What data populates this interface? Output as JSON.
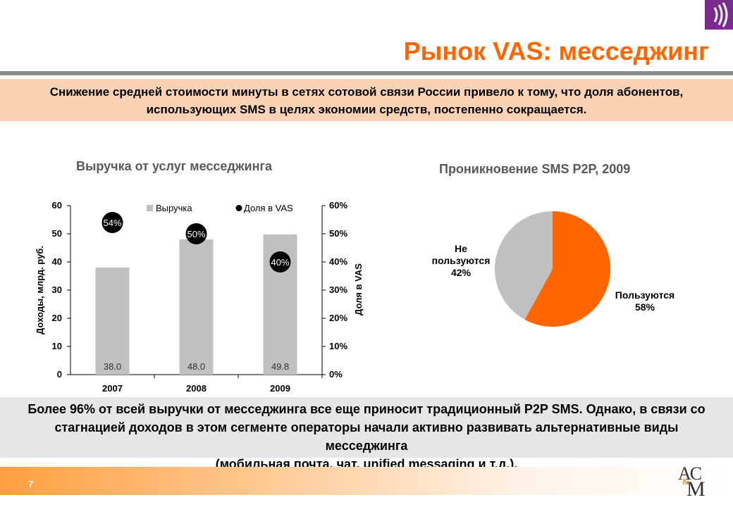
{
  "header": {
    "title": "Рынок VAS: месседжинг",
    "accent_color": "#ff6600",
    "logo_color": "#7b2a8f"
  },
  "intro": {
    "line1": "Снижение средней стоимости минуты в сетях сотовой связи России привело к тому, что доля абонентов,",
    "line2": "использующих SMS в целях экономии средств, постепенно сокращается."
  },
  "conclusion": {
    "line1": "Более 96% от всей выручки от месседжинга все еще приносит традиционный P2P SMS. Однако, в связи со",
    "line2": "стагнацией доходов в этом сегменте операторы начали активно развивать альтернативные виды месседжинга",
    "line3": "(мобильная почта, чат, unified messaging и т.д.)."
  },
  "chart_data": [
    {
      "type": "bar",
      "title": "Выручка от услуг месседжинга",
      "categories": [
        "2007",
        "2008",
        "2009"
      ],
      "series": [
        {
          "name": "Выручка",
          "kind": "bar",
          "axis": "left",
          "color": "#c0c0c0",
          "values": [
            38.0,
            48.0,
            49.8
          ],
          "labels": [
            "38.0",
            "48.0",
            "49.8"
          ]
        },
        {
          "name": "Доля в VAS",
          "kind": "marker",
          "axis": "right",
          "color": "#000000",
          "values": [
            54,
            50,
            40
          ],
          "labels": [
            "54%",
            "50%",
            "40%"
          ]
        }
      ],
      "ylabel": "Доходы, млрд. руб.",
      "y2label": "Доля в VAS",
      "ylim": [
        0,
        60
      ],
      "y2lim": [
        0,
        60
      ],
      "yticks": [
        "0",
        "10",
        "20",
        "30",
        "40",
        "50",
        "60"
      ],
      "y2ticks": [
        "0%",
        "10%",
        "20%",
        "30%",
        "40%",
        "50%",
        "60%"
      ],
      "legend": "top",
      "grid": false
    },
    {
      "type": "pie",
      "title": "Проникновение SMS P2P, 2009",
      "slices": [
        {
          "label_lines": [
            "Пользуются",
            "58%"
          ],
          "value": 58,
          "color": "#ff6600"
        },
        {
          "label_lines": [
            "Не",
            "пользуются",
            "42%"
          ],
          "value": 42,
          "color": "#c0c0c0"
        }
      ]
    }
  ],
  "footer": {
    "page_number": "7",
    "logo_line1": "AC",
    "logo_amp": "&",
    "logo_line2": "M"
  }
}
